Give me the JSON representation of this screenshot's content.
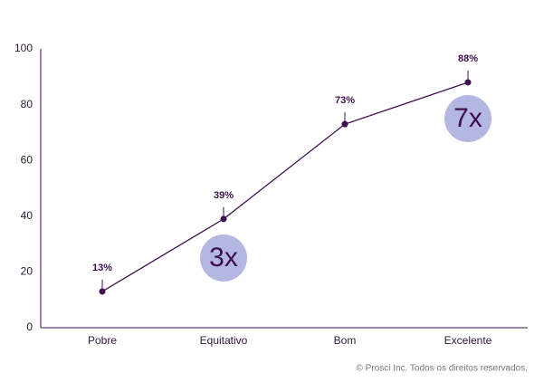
{
  "chart_data": {
    "type": "line",
    "categories": [
      "Pobre",
      "Equitativo",
      "Bom",
      "Excelente"
    ],
    "series": [
      {
        "color": "#3d0f4f",
        "values": [
          13,
          39,
          73,
          88
        ],
        "value_labels": [
          "13%",
          "39%",
          "73%",
          "88%"
        ]
      }
    ],
    "ylim": [
      0,
      100
    ],
    "yticks": [
      0,
      20,
      40,
      60,
      80,
      100
    ],
    "grid": false,
    "annotations": [
      "3x",
      "7x"
    ],
    "footnote": "© Prosci Inc. Todos os direitos reservados."
  }
}
